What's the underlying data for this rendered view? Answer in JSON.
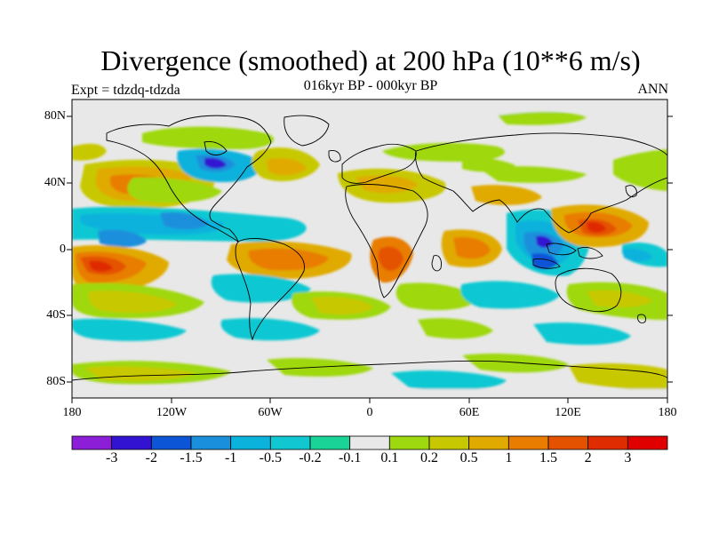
{
  "title": "Divergence (smoothed) at 200 hPa (10**6 m/s)",
  "subtitle": "016kyr BP - 000kyr BP",
  "experiment": "Expt = tdzdq-tdzda",
  "period": "ANN",
  "lat_labels": [
    "80N",
    "40N",
    "0",
    "40S",
    "80S"
  ],
  "lon_labels": [
    "180",
    "120W",
    "60W",
    "0",
    "60E",
    "120E",
    "180"
  ],
  "colorbar": {
    "labels": [
      "-3",
      "-2",
      "-1.5",
      "-1",
      "-0.5",
      "-0.2",
      "-0.1",
      "0.1",
      "0.2",
      "0.5",
      "1",
      "1.5",
      "2",
      "3"
    ],
    "colors": [
      "#8c1ed8",
      "#3213d2",
      "#0c55d6",
      "#1a8fdc",
      "#0ab2dc",
      "#11c8d2",
      "#1ad396",
      "#e8e8e8",
      "#9ed80e",
      "#c8c800",
      "#e0aa00",
      "#e87d00",
      "#e45200",
      "#df2c00",
      "#e00000"
    ]
  },
  "colors": {
    "land_line": "#000000",
    "neutral": "#e8e8e8"
  }
}
